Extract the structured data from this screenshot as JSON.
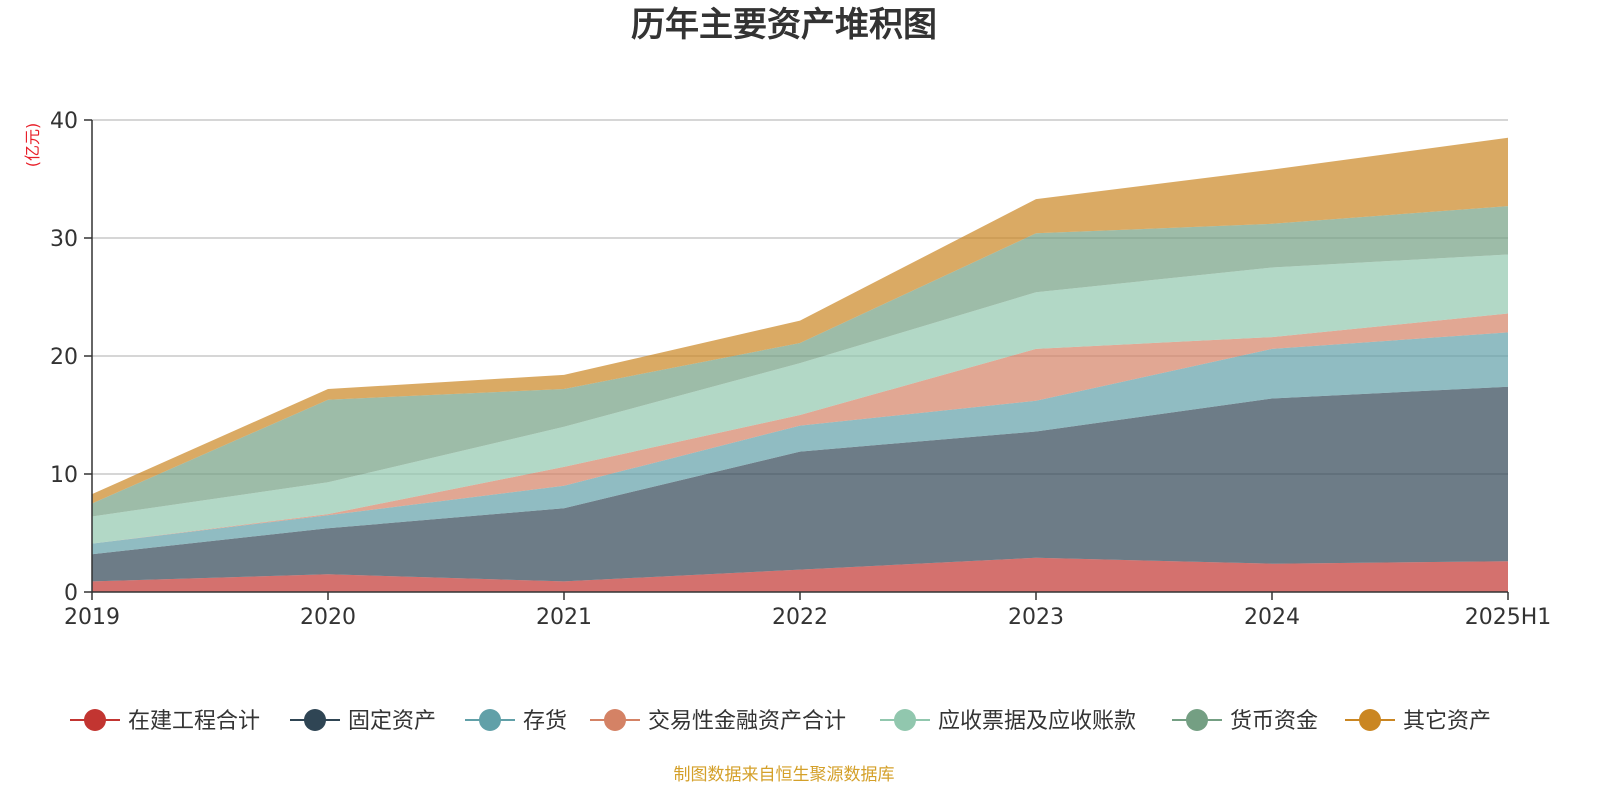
{
  "chart_data": {
    "type": "area",
    "stacked": true,
    "title": "历年主要资产堆积图",
    "unit_label": "(亿元)",
    "x": [
      "2019",
      "2020",
      "2021",
      "2022",
      "2023",
      "2024",
      "2025H1"
    ],
    "ylim": [
      0,
      40
    ],
    "yticks": [
      0,
      10,
      20,
      30,
      40
    ],
    "grid": true,
    "legend_position": "bottom",
    "series": [
      {
        "name": "在建工程合计",
        "color": "#c23531",
        "values": [
          0.9,
          1.5,
          0.9,
          1.9,
          2.9,
          2.4,
          2.6
        ]
      },
      {
        "name": "固定资产",
        "color": "#2f4554",
        "values": [
          2.3,
          3.9,
          6.2,
          10.0,
          10.7,
          14.0,
          14.8
        ]
      },
      {
        "name": "存货",
        "color": "#61a0a8",
        "values": [
          0.9,
          1.1,
          1.9,
          2.2,
          2.6,
          4.2,
          4.6
        ]
      },
      {
        "name": "交易性金融资产合计",
        "color": "#d48265",
        "values": [
          0.0,
          0.1,
          1.6,
          0.9,
          4.4,
          1.0,
          1.6
        ]
      },
      {
        "name": "应收票据及应收账款",
        "color": "#91c7ae",
        "values": [
          2.3,
          2.7,
          3.4,
          4.4,
          4.8,
          5.9,
          5.0
        ]
      },
      {
        "name": "货币资金",
        "color": "#749f83",
        "values": [
          1.1,
          7.0,
          3.2,
          1.7,
          5.0,
          3.7,
          4.1
        ]
      },
      {
        "name": "其它资产",
        "color": "#ca8622",
        "values": [
          0.8,
          0.9,
          1.2,
          1.9,
          2.9,
          4.6,
          5.8
        ]
      }
    ],
    "source_note": "制图数据来自恒生聚源数据库"
  }
}
